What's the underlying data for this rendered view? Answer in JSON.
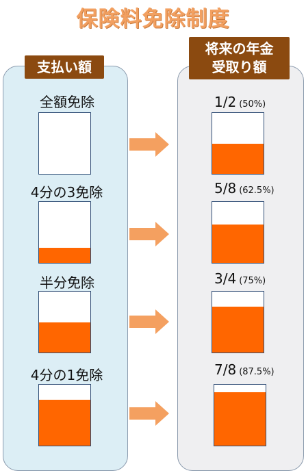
{
  "title": "保険料免除制度",
  "left_panel": {
    "header": "支払い額",
    "items": [
      {
        "label": "全額免除",
        "paid_fraction": 0
      },
      {
        "label": "4分の3免除",
        "paid_fraction": 0.25
      },
      {
        "label": "半分免除",
        "paid_fraction": 0.5
      },
      {
        "label": "4分の1免除",
        "paid_fraction": 0.75
      }
    ]
  },
  "right_panel": {
    "header_line1": "将来の年金",
    "header_line2": "受取り額",
    "items": [
      {
        "ratio": "1/2",
        "percent": "(50%)",
        "fraction": 0.5
      },
      {
        "ratio": "5/8",
        "percent": "(62.5%)",
        "fraction": 0.625
      },
      {
        "ratio": "3/4",
        "percent": "(75%)",
        "fraction": 0.75
      },
      {
        "ratio": "7/8",
        "percent": "(87.5%)",
        "fraction": 0.875
      }
    ]
  },
  "colors": {
    "fill": "#ff6600",
    "arrow": "#f4a060",
    "badge": "#8b4a10",
    "title": "#f2a061",
    "left_panel_bg": "#dceef5",
    "right_panel_bg": "#efeff1"
  }
}
